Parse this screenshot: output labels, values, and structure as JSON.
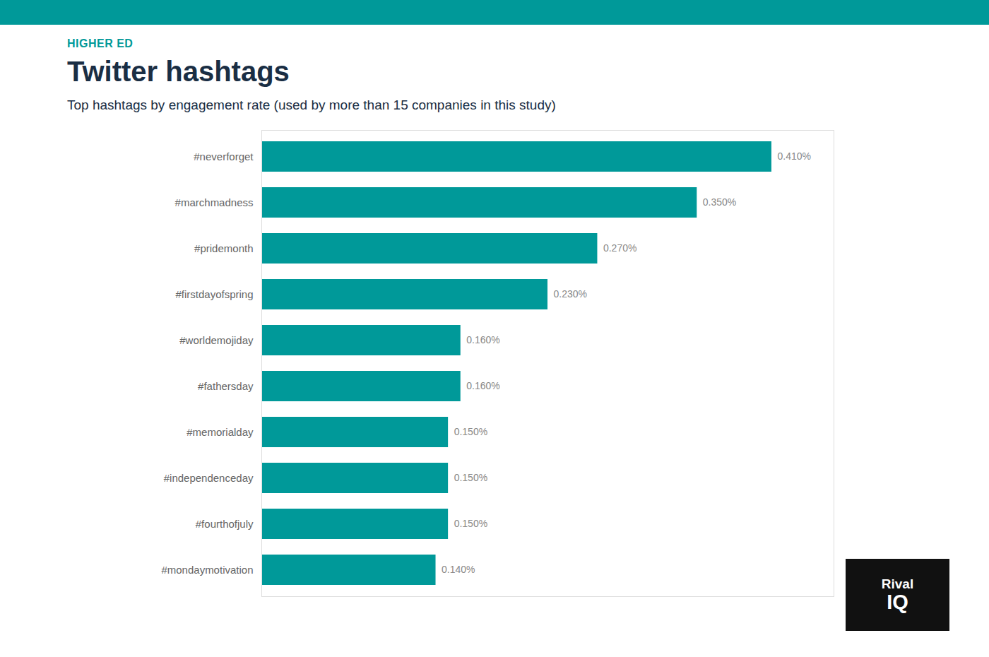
{
  "chart_data": {
    "type": "bar",
    "orientation": "horizontal",
    "title": "Twitter hashtags",
    "subtitle": "Top hashtags by engagement rate (used by more than 15 companies in this study)",
    "annotations": [
      "HIGHER ED",
      "Rival",
      "IQ"
    ],
    "categories": [
      "#mondaymotivation",
      "#fourthofjuly",
      "#independenceday",
      "#memorialday",
      "#fathersday",
      "#worldemojiday",
      "#firstdayofspring",
      "#pridemonth",
      "#marchmadness",
      "#neverforget"
    ],
    "values": [
      0.14,
      0.15,
      0.15,
      0.15,
      0.16,
      0.16,
      0.23,
      0.27,
      0.35,
      0.41
    ],
    "value_labels": [
      "0.140%",
      "0.150%",
      "0.150%",
      "0.150%",
      "0.160%",
      "0.160%",
      "0.230%",
      "0.270%",
      "0.350%",
      "0.410%"
    ],
    "data_labels": true,
    "color": "#009999",
    "xlim": [
      0,
      0.46
    ],
    "tick_labels": "y",
    "grid": false
  }
}
